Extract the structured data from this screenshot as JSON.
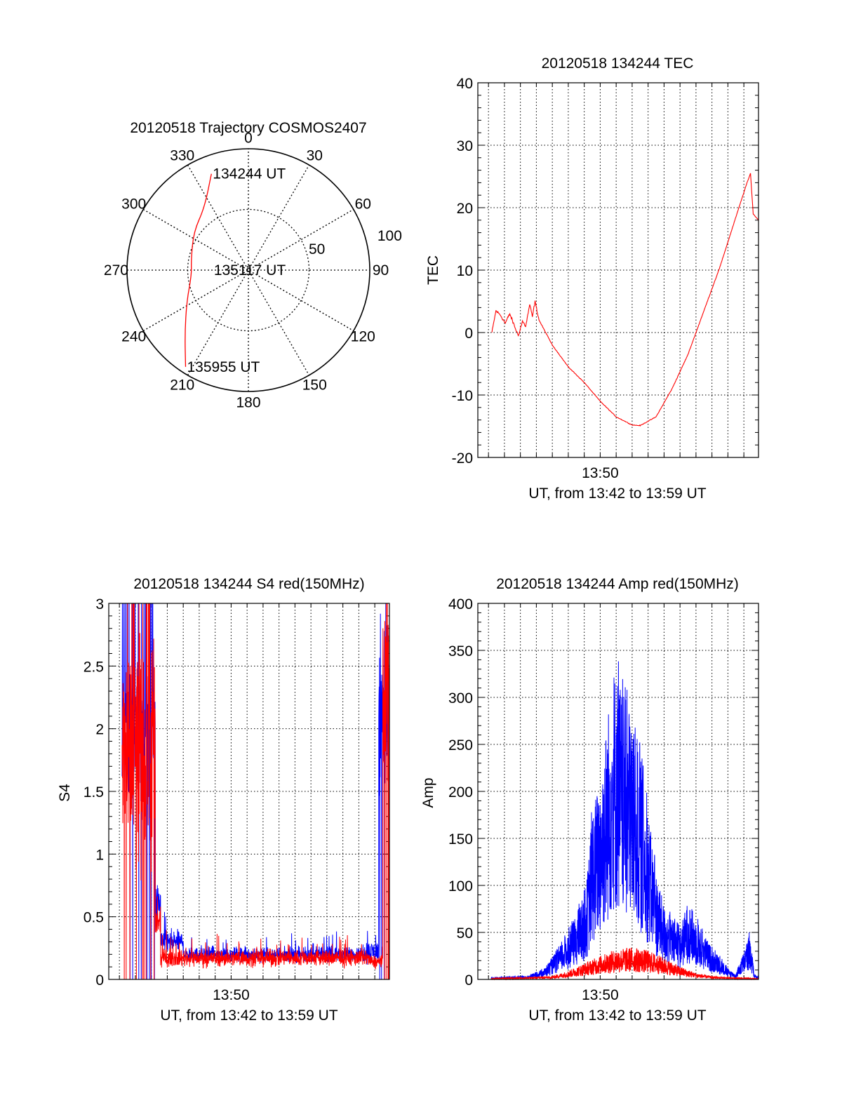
{
  "chart_data": [
    {
      "id": "trajectory",
      "type": "polar",
      "title": "20120518 Trajectory COSMOS2407",
      "azimuth_labels": [
        "0",
        "30",
        "60",
        "90",
        "120",
        "150",
        "180",
        "210",
        "240",
        "270",
        "300",
        "330"
      ],
      "ring_labels": [
        "50",
        "100"
      ],
      "rlim": [
        0,
        100
      ],
      "grid": true,
      "series": [
        {
          "color": "#ff0000",
          "points": [
            {
              "az": 339,
              "r": 85
            },
            {
              "az": 325,
              "r": 63
            },
            {
              "az": 305,
              "r": 55
            },
            {
              "az": 281,
              "r": 48
            },
            {
              "az": 265,
              "r": 47
            },
            {
              "az": 243,
              "r": 57
            },
            {
              "az": 225,
              "r": 74
            },
            {
              "az": 213,
              "r": 95
            }
          ]
        }
      ],
      "annotations": [
        {
          "text": "134244 UT",
          "az": 339,
          "r": 85
        },
        {
          "text": "135117 UT",
          "az": 0,
          "r": 0
        },
        {
          "text": "135955 UT",
          "az": 213,
          "r": 95
        }
      ]
    },
    {
      "id": "tec",
      "type": "line",
      "title": "20120518 134244 TEC",
      "xlabel": "UT, from 13:42 to 13:59 UT",
      "ylabel": "TEC",
      "xlim": [
        "13:42:20",
        "13:59:55"
      ],
      "ylim": [
        -20,
        40
      ],
      "yticks": [
        -20,
        -10,
        0,
        10,
        20,
        30,
        40
      ],
      "xticks": [
        {
          "value": "13:50",
          "label": "13:50"
        }
      ],
      "grid": true,
      "series": [
        {
          "color": "#ff0000",
          "points": [
            [
              "13:43:13",
              0
            ],
            [
              "13:43:28",
              3.5
            ],
            [
              "13:43:45",
              2.8
            ],
            [
              "13:44:03",
              1.5
            ],
            [
              "13:44:20",
              3
            ],
            [
              "13:44:38",
              1
            ],
            [
              "13:44:52",
              -0.5
            ],
            [
              "13:45:08",
              1.8
            ],
            [
              "13:45:20",
              1
            ],
            [
              "13:45:35",
              4.5
            ],
            [
              "13:45:45",
              2.5
            ],
            [
              "13:45:55",
              5
            ],
            [
              "13:46:10",
              2
            ],
            [
              "13:47:00",
              -2
            ],
            [
              "13:48:00",
              -5.5
            ],
            [
              "13:49:00",
              -8
            ],
            [
              "13:50:00",
              -11
            ],
            [
              "13:51:00",
              -13.5
            ],
            [
              "13:52:00",
              -14.8
            ],
            [
              "13:52:30",
              -14.9
            ],
            [
              "13:53:30",
              -13.5
            ],
            [
              "13:54:30",
              -9
            ],
            [
              "13:55:30",
              -3.5
            ],
            [
              "13:56:30",
              3.5
            ],
            [
              "13:57:30",
              10.5
            ],
            [
              "13:58:30",
              18.5
            ],
            [
              "13:59:08",
              23.5
            ],
            [
              "13:59:25",
              25.5
            ],
            [
              "13:59:35",
              19
            ],
            [
              "13:59:55",
              18
            ]
          ]
        }
      ]
    },
    {
      "id": "s4",
      "type": "line",
      "title": "20120518 134244 S4 red(150MHz)",
      "xlabel": "UT, from 13:42 to 13:59 UT",
      "ylabel": "S4",
      "xlim": [
        "13:42:20",
        "13:59:55"
      ],
      "ylim": [
        0,
        3
      ],
      "yticks": [
        0,
        0.5,
        1,
        1.5,
        2,
        2.5,
        3
      ],
      "ytick_labels": [
        "0",
        "0.5",
        "1",
        "1.5",
        "2",
        "2.5",
        "3"
      ],
      "xticks": [
        {
          "value": "13:50",
          "label": "13:50"
        }
      ],
      "grid": true,
      "series": [
        {
          "color": "#0000ff",
          "segments": [
            {
              "start": "13:43:10",
              "end": "13:45:15",
              "base": 2.0,
              "noise": 0.45
            },
            {
              "start": "13:45:15",
              "end": "13:45:35",
              "base": 0.6,
              "noise": 0.15
            },
            {
              "start": "13:45:35",
              "end": "13:47:00",
              "base": 0.3,
              "noise": 0.08
            },
            {
              "start": "13:47:00",
              "end": "13:58:15",
              "base": 0.2,
              "noise": 0.05
            },
            {
              "start": "13:58:15",
              "end": "13:59:15",
              "base": 0.22,
              "noise": 0.08
            },
            {
              "start": "13:59:15",
              "end": "13:59:55",
              "base": 2.2,
              "noise": 0.6
            }
          ]
        },
        {
          "color": "#ff0000",
          "segments": [
            {
              "start": "13:43:10",
              "end": "13:45:15",
              "base": 1.8,
              "noise": 1.0
            },
            {
              "start": "13:45:15",
              "end": "13:45:35",
              "base": 0.45,
              "noise": 0.1
            },
            {
              "start": "13:45:35",
              "end": "13:58:40",
              "base": 0.17,
              "noise": 0.06
            },
            {
              "start": "13:58:40",
              "end": "13:59:30",
              "base": 0.14,
              "noise": 0.05
            },
            {
              "start": "13:59:30",
              "end": "13:59:55",
              "base": 2.3,
              "noise": 0.6
            }
          ]
        }
      ]
    },
    {
      "id": "amp",
      "type": "line",
      "title": "20120518 134244 Amp red(150MHz)",
      "xlabel": "UT, from 13:42 to 13:59 UT",
      "ylabel": "Amp",
      "xlim": [
        "13:42:20",
        "13:59:55"
      ],
      "ylim": [
        0,
        400
      ],
      "yticks": [
        0,
        50,
        100,
        150,
        200,
        250,
        300,
        350,
        400
      ],
      "xticks": [
        {
          "value": "13:50",
          "label": "13:50"
        }
      ],
      "grid": true,
      "series": [
        {
          "color": "#0000ff",
          "envelope": [
            [
              "13:43:10",
              2
            ],
            [
              "13:45:30",
              3
            ],
            [
              "13:46:30",
              10
            ],
            [
              "13:47:30",
              30
            ],
            [
              "13:48:15",
              50
            ],
            [
              "13:48:50",
              70
            ],
            [
              "13:49:10",
              90
            ],
            [
              "13:49:30",
              150
            ],
            [
              "13:50:00",
              180
            ],
            [
              "13:50:30",
              240
            ],
            [
              "13:50:50",
              280
            ],
            [
              "13:51:10",
              270
            ],
            [
              "13:51:30",
              250
            ],
            [
              "13:52:00",
              240
            ],
            [
              "13:52:30",
              200
            ],
            [
              "13:53:00",
              150
            ],
            [
              "13:53:30",
              95
            ],
            [
              "13:54:00",
              65
            ],
            [
              "13:55:00",
              45
            ],
            [
              "13:55:30",
              70
            ],
            [
              "13:56:00",
              55
            ],
            [
              "13:56:30",
              40
            ],
            [
              "13:57:00",
              28
            ],
            [
              "13:57:30",
              20
            ],
            [
              "13:58:00",
              10
            ],
            [
              "13:58:30",
              5
            ],
            [
              "13:59:00",
              25
            ],
            [
              "13:59:20",
              40
            ],
            [
              "13:59:40",
              5
            ],
            [
              "13:59:55",
              2
            ]
          ]
        },
        {
          "color": "#ff0000",
          "envelope": [
            [
              "13:43:10",
              1
            ],
            [
              "13:47:00",
              3
            ],
            [
              "13:48:00",
              8
            ],
            [
              "13:49:00",
              15
            ],
            [
              "13:50:00",
              22
            ],
            [
              "13:51:00",
              28
            ],
            [
              "13:52:00",
              30
            ],
            [
              "13:53:00",
              27
            ],
            [
              "13:54:00",
              20
            ],
            [
              "13:55:00",
              12
            ],
            [
              "13:56:00",
              6
            ],
            [
              "13:57:00",
              3
            ],
            [
              "13:58:00",
              2
            ],
            [
              "13:59:55",
              1
            ]
          ]
        }
      ]
    }
  ]
}
